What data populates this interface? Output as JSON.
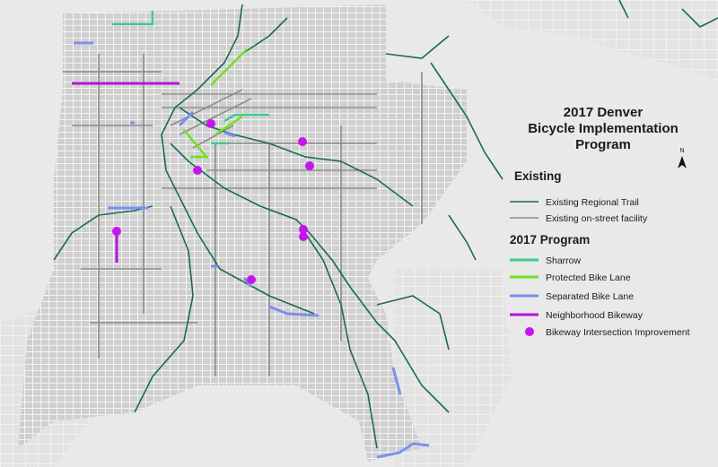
{
  "title": [
    "2017 Denver",
    "Bicycle Implementation",
    "Program"
  ],
  "north_label": "N",
  "legend": {
    "existing_heading": "Existing",
    "existing_items": [
      "Existing Regional Trail",
      "Existing on-street facility"
    ],
    "program_heading": "2017 Program",
    "program_items": [
      "Sharrow",
      "Protected Bike Lane",
      "Separated Bike Lane",
      "Neighborhood Bikeway",
      "Bikeway Intersection Improvement"
    ]
  }
}
